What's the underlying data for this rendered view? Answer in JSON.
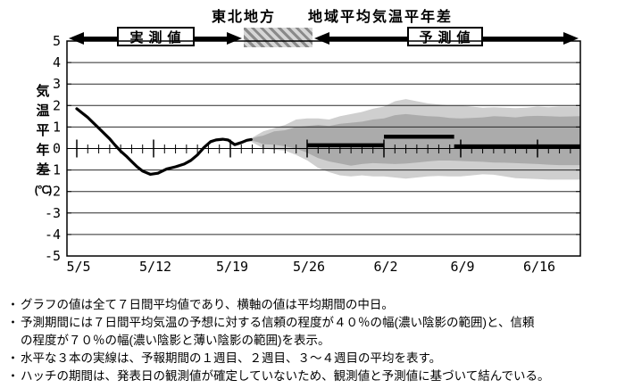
{
  "header": {
    "region": "東北地方",
    "title": "地域平均気温平年差",
    "observed_label": "実測値",
    "forecast_label": "予測値"
  },
  "y_axis": {
    "label_chars": [
      "気",
      "温",
      "平",
      "年",
      "差",
      "(℃)"
    ],
    "ticks": [
      5,
      4,
      3,
      2,
      1,
      0,
      -1,
      -2,
      -3,
      -4,
      -5
    ]
  },
  "x_axis": {
    "tick_labels": [
      "5/5",
      "5/12",
      "5/19",
      "5/26",
      "6/2",
      "6/9",
      "6/16"
    ]
  },
  "notes": [
    {
      "bullet": "・",
      "text": "グラフの値は全て７日間平均値であり、横軸の値は平均期間の中日。"
    },
    {
      "bullet": "・",
      "text": "予測期間には７日間平均気温の予想に対する信頼の程度が４０％の幅(濃い陰影の範囲)と、信頼"
    },
    {
      "bullet": "",
      "text": "の程度が７０％の幅(濃い陰影と薄い陰影の範囲)を表示。"
    },
    {
      "bullet": "・",
      "text": "水平な３本の実線は、予報期間の１週目、２週目、３～４週目の平均を表す。"
    },
    {
      "bullet": "・",
      "text": "ハッチの期間は、発表日の観測値が確定していないため、観測値と予測値に基づいて結んでいる。"
    }
  ],
  "colors": {
    "band70_light_shade": "#cfcfcf",
    "band40_dark_shade": "#ababab",
    "line": "#000000",
    "grid": "#2a2a2a",
    "background": "#ffffff"
  },
  "chart_data": {
    "type": "line",
    "title": "東北地方　地域平均気温平年差",
    "ylabel": "気温平年差(℃)",
    "ylim": [
      -5,
      5
    ],
    "yticks": [
      5,
      4,
      3,
      2,
      1,
      0,
      -1,
      -2,
      -3,
      -4,
      -5
    ],
    "x_unit": "days_from_5/5",
    "week_tick_labels": [
      "5/5",
      "5/12",
      "5/19",
      "5/26",
      "6/2",
      "6/9",
      "6/16"
    ],
    "grid": "horizontal_only",
    "observed_series": {
      "name": "実測値 (7日間平均気温平年差)",
      "points": [
        [
          0,
          1.85
        ],
        [
          0.5,
          1.65
        ],
        [
          1,
          1.45
        ],
        [
          1.5,
          1.2
        ],
        [
          2,
          0.95
        ],
        [
          2.5,
          0.7
        ],
        [
          3,
          0.45
        ],
        [
          3.5,
          0.15
        ],
        [
          4,
          -0.12
        ],
        [
          4.5,
          -0.35
        ],
        [
          5,
          -0.6
        ],
        [
          5.5,
          -0.85
        ],
        [
          6,
          -1.05
        ],
        [
          6.7,
          -1.2
        ],
        [
          7.4,
          -1.15
        ],
        [
          8.2,
          -0.95
        ],
        [
          9,
          -0.85
        ],
        [
          9.8,
          -0.72
        ],
        [
          10.4,
          -0.55
        ],
        [
          11,
          -0.3
        ],
        [
          11.6,
          0.05
        ],
        [
          12.2,
          0.32
        ],
        [
          12.7,
          0.4
        ],
        [
          13.3,
          0.43
        ],
        [
          13.8,
          0.4
        ],
        [
          14.4,
          0.18
        ],
        [
          15,
          0.28
        ],
        [
          15.5,
          0.38
        ],
        [
          15.9,
          0.42
        ]
      ]
    },
    "forecast_means": [
      {
        "name": "１週目",
        "d0": 21.0,
        "d1": 28.0,
        "value": 0.15
      },
      {
        "name": "２週目",
        "d0": 28.0,
        "d1": 34.4,
        "value": 0.55
      },
      {
        "name": "３～４週目",
        "d0": 34.4,
        "d1": 45.9,
        "value": 0.1
      }
    ],
    "confidence_bands": {
      "band40_dark": [
        [
          15.8,
          0.45,
          0.38
        ],
        [
          16.5,
          0.55,
          0.3
        ],
        [
          17,
          0.6,
          0.2
        ],
        [
          18,
          0.8,
          0.18
        ],
        [
          19,
          0.85,
          0.1
        ],
        [
          20,
          1.0,
          0.0
        ],
        [
          21,
          1.05,
          -0.2
        ],
        [
          22,
          1.1,
          -0.45
        ],
        [
          23,
          1.05,
          -0.6
        ],
        [
          24,
          1.15,
          -0.7
        ],
        [
          25,
          1.2,
          -0.8
        ],
        [
          26,
          1.25,
          -0.72
        ],
        [
          27,
          1.35,
          -0.68
        ],
        [
          28,
          1.4,
          -0.7
        ],
        [
          29,
          1.55,
          -0.72
        ],
        [
          30,
          1.6,
          -0.7
        ],
        [
          31,
          1.55,
          -0.65
        ],
        [
          32,
          1.5,
          -0.6
        ],
        [
          33,
          1.48,
          -0.56
        ],
        [
          34,
          1.42,
          -0.56
        ],
        [
          35,
          1.4,
          -0.58
        ],
        [
          36,
          1.42,
          -0.6
        ],
        [
          37,
          1.45,
          -0.62
        ],
        [
          38,
          1.5,
          -0.65
        ],
        [
          39,
          1.48,
          -0.66
        ],
        [
          40,
          1.45,
          -0.68
        ],
        [
          41,
          1.5,
          -0.7
        ],
        [
          42,
          1.52,
          -0.72
        ],
        [
          43,
          1.5,
          -0.75
        ],
        [
          44,
          1.48,
          -0.77
        ],
        [
          45.9,
          1.5,
          -0.77
        ]
      ],
      "band70_light": [
        [
          15.8,
          0.45,
          0.35
        ],
        [
          16.5,
          0.65,
          0.15
        ],
        [
          17,
          0.8,
          0.0
        ],
        [
          18,
          0.95,
          -0.05
        ],
        [
          19,
          1.1,
          -0.1
        ],
        [
          20,
          1.35,
          -0.3
        ],
        [
          21,
          1.4,
          -0.55
        ],
        [
          22,
          1.4,
          -0.9
        ],
        [
          23,
          1.35,
          -1.1
        ],
        [
          24,
          1.5,
          -1.25
        ],
        [
          25,
          1.6,
          -1.3
        ],
        [
          26,
          1.7,
          -1.25
        ],
        [
          27,
          1.85,
          -1.3
        ],
        [
          28,
          1.95,
          -1.3
        ],
        [
          29,
          2.2,
          -1.35
        ],
        [
          30,
          2.3,
          -1.4
        ],
        [
          31,
          2.2,
          -1.35
        ],
        [
          32,
          2.1,
          -1.3
        ],
        [
          33,
          2.05,
          -1.28
        ],
        [
          34,
          2.0,
          -1.3
        ],
        [
          35,
          2.0,
          -1.3
        ],
        [
          36,
          1.95,
          -1.25
        ],
        [
          37,
          1.9,
          -1.2
        ],
        [
          38,
          1.92,
          -1.22
        ],
        [
          39,
          1.9,
          -1.3
        ],
        [
          40,
          1.88,
          -1.38
        ],
        [
          41,
          1.9,
          -1.4
        ],
        [
          42,
          1.95,
          -1.42
        ],
        [
          43,
          1.92,
          -1.45
        ],
        [
          44,
          1.95,
          -1.45
        ],
        [
          45.9,
          1.95,
          -1.45
        ]
      ]
    }
  }
}
